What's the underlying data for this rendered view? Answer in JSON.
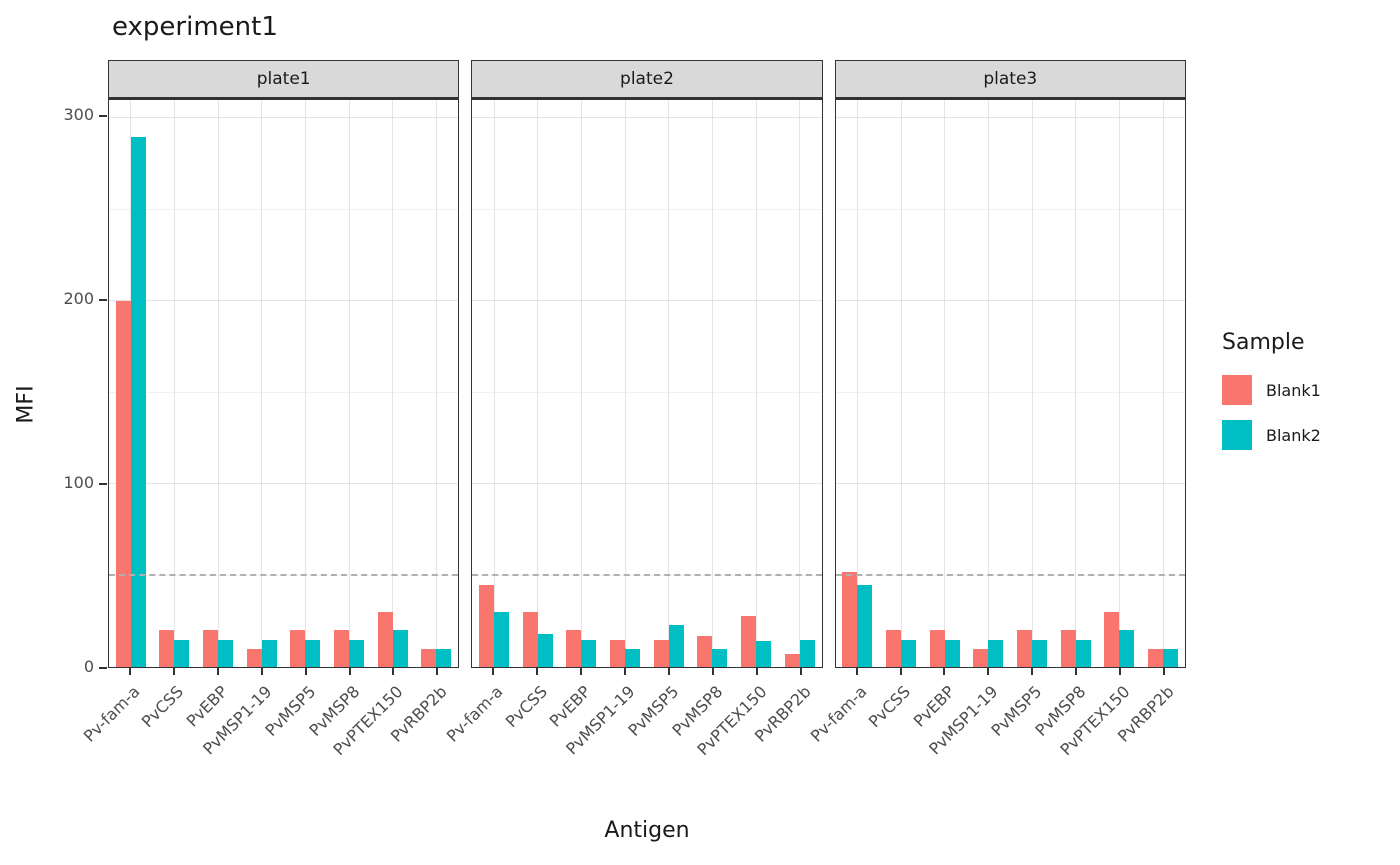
{
  "chart_data": {
    "type": "bar",
    "title": "experiment1",
    "xlabel": "Antigen",
    "ylabel": "MFI",
    "legend_title": "Sample",
    "ylim": [
      0,
      310
    ],
    "yticks": [
      0,
      100,
      200,
      300
    ],
    "threshold": 50,
    "grid": "on",
    "legend_position": "right",
    "facets": [
      "plate1",
      "plate2",
      "plate3"
    ],
    "categories": [
      "Pv-fam-a",
      "PvCSS",
      "PvEBP",
      "PvMSP1-19",
      "PvMSP5",
      "PvMSP8",
      "PvPTEX150",
      "PvRBP2b"
    ],
    "series": [
      {
        "name": "Blank1",
        "color": "#F8766D",
        "values": {
          "plate1": [
            200,
            20,
            20,
            10,
            20,
            20,
            30,
            10
          ],
          "plate2": [
            45,
            30,
            20,
            15,
            15,
            17,
            28,
            7
          ],
          "plate3": [
            52,
            20,
            20,
            10,
            20,
            20,
            30,
            10
          ]
        }
      },
      {
        "name": "Blank2",
        "color": "#00BFC4",
        "values": {
          "plate1": [
            290,
            15,
            15,
            15,
            15,
            15,
            20,
            10
          ],
          "plate2": [
            30,
            18,
            15,
            10,
            23,
            10,
            14,
            15
          ],
          "plate3": [
            45,
            15,
            15,
            15,
            15,
            15,
            20,
            10
          ]
        }
      }
    ]
  }
}
